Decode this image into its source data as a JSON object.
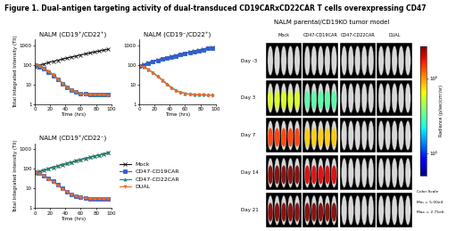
{
  "title": "Figure 1. Dual-antigen targeting activity of dual-transduced CD19CARxCD22CAR T cells overexpressing CD47",
  "chart_data": [
    {
      "type": "line",
      "title": "NALM (CD19⁺/CD22⁺)",
      "x_label": "Time (hrs)",
      "y_label": "Total Integrated Intensity (TII)",
      "log": "y",
      "xlim": [
        0,
        100
      ],
      "xticks": [
        0,
        20,
        40,
        60,
        80,
        100
      ],
      "ylim": [
        1,
        2000
      ],
      "yticks": [
        1,
        10,
        100,
        1000
      ],
      "x": [
        0,
        6,
        12,
        18,
        24,
        30,
        36,
        42,
        48,
        54,
        60,
        66,
        72,
        78,
        84,
        90,
        96
      ],
      "series": [
        {
          "name": "Mock",
          "color": "#111111",
          "marker": "x",
          "line_style": "solid",
          "values": [
            80,
            95,
            110,
            130,
            150,
            170,
            195,
            220,
            250,
            280,
            320,
            360,
            400,
            450,
            500,
            560,
            620
          ]
        },
        {
          "name": "CD47-CD19CAR",
          "color": "#2f5fd0",
          "marker": "square",
          "line_style": "solid",
          "values": [
            100,
            80,
            60,
            42,
            28,
            18,
            11,
            7,
            5,
            4,
            3.5,
            3.2,
            3,
            3,
            3,
            3,
            3
          ]
        },
        {
          "name": "CD47-CD22CAR",
          "color": "#1f8a7a",
          "marker": "triangle_up",
          "line_style": "solid",
          "values": [
            110,
            90,
            68,
            48,
            32,
            20,
            12,
            8,
            5.5,
            4,
            3.5,
            3.2,
            3,
            2.9,
            2.9,
            2.9,
            2.9
          ]
        },
        {
          "name": "DUAL",
          "color": "#f06a2a",
          "marker": "triangle_down",
          "line_style": "solid",
          "values": [
            105,
            85,
            62,
            44,
            29,
            18,
            11,
            7,
            5,
            4,
            3.4,
            3.1,
            3,
            3,
            2.9,
            2.9,
            2.8
          ]
        }
      ]
    },
    {
      "type": "line",
      "title": "NALM (CD19⁻/CD22⁺)",
      "x_label": "Time (hrs)",
      "log": "y",
      "xlim": [
        0,
        100
      ],
      "xticks": [
        0,
        20,
        40,
        60,
        80,
        100
      ],
      "ylim": [
        1,
        2000
      ],
      "yticks": [
        1,
        10,
        100,
        1000
      ],
      "x": [
        0,
        6,
        12,
        18,
        24,
        30,
        36,
        42,
        48,
        54,
        60,
        66,
        72,
        78,
        84,
        90,
        96
      ],
      "series": [
        {
          "name": "Mock",
          "color": "#111111",
          "marker": "x",
          "line_style": "solid",
          "values": [
            90,
            105,
            125,
            150,
            175,
            200,
            230,
            265,
            300,
            340,
            390,
            440,
            500,
            560,
            630,
            700,
            780
          ]
        },
        {
          "name": "CD47-CD19CAR",
          "color": "#2f5fd0",
          "marker": "square",
          "line_style": "solid",
          "values": [
            85,
            100,
            118,
            140,
            165,
            190,
            220,
            250,
            285,
            325,
            370,
            420,
            475,
            535,
            600,
            670,
            740
          ]
        },
        {
          "name": "CD47-CD22CAR",
          "color": "#1f8a7a",
          "marker": "triangle_up",
          "line_style": "solid",
          "values": [
            95,
            78,
            58,
            40,
            27,
            17,
            11,
            7,
            5,
            4,
            3.5,
            3.2,
            3,
            3,
            2.9,
            2.9,
            2.9
          ]
        },
        {
          "name": "DUAL",
          "color": "#f06a2a",
          "marker": "triangle_down",
          "line_style": "solid",
          "values": [
            90,
            74,
            55,
            38,
            25,
            16,
            10,
            6.5,
            4.8,
            3.8,
            3.4,
            3.1,
            3,
            2.9,
            2.9,
            2.8,
            2.8
          ]
        }
      ]
    },
    {
      "type": "line",
      "title": "NALM (CD19⁺/CD22⁻)",
      "x_label": "Time (hrs)",
      "y_label": "Total Integrated Intensity (TII)",
      "log": "y",
      "xlim": [
        0,
        100
      ],
      "xticks": [
        0,
        20,
        40,
        60,
        80,
        100
      ],
      "ylim": [
        1,
        2000
      ],
      "yticks": [
        1,
        10,
        100,
        1000
      ],
      "legend": "right",
      "x": [
        0,
        6,
        12,
        18,
        24,
        30,
        36,
        42,
        48,
        54,
        60,
        66,
        72,
        78,
        84,
        90,
        96
      ],
      "series": [
        {
          "name": "Mock",
          "color": "#111111",
          "marker": "x",
          "line_style": "solid",
          "values": [
            60,
            72,
            85,
            100,
            118,
            138,
            160,
            185,
            215,
            250,
            290,
            335,
            385,
            440,
            500,
            570,
            650
          ]
        },
        {
          "name": "CD47-CD19CAR",
          "color": "#2f5fd0",
          "marker": "square",
          "line_style": "solid",
          "values": [
            70,
            58,
            45,
            33,
            23,
            15,
            10,
            7,
            5,
            4,
            3.5,
            3.2,
            3,
            3,
            3,
            3,
            3
          ]
        },
        {
          "name": "CD47-CD22CAR",
          "color": "#1f8a7a",
          "marker": "triangle_up",
          "line_style": "solid",
          "values": [
            62,
            74,
            88,
            104,
            122,
            142,
            165,
            190,
            220,
            255,
            295,
            340,
            390,
            445,
            505,
            575,
            655
          ]
        },
        {
          "name": "DUAL",
          "color": "#f06a2a",
          "marker": "triangle_down",
          "line_style": "solid",
          "values": [
            68,
            55,
            42,
            30,
            21,
            14,
            9,
            6.5,
            4.8,
            3.9,
            3.4,
            3.1,
            3,
            2.9,
            2.9,
            2.9,
            2.9
          ]
        }
      ]
    }
  ],
  "image_panel": {
    "title": "NALM parental/CD19KO tumor model",
    "columns": [
      "Mock",
      "CD47-CD19CAR",
      "CD47-CD22CAR",
      "DUAL"
    ],
    "rows": [
      "Day -3",
      "Day 3",
      "Day 7",
      "Day 14",
      "Day 21"
    ],
    "signal": [
      [
        null,
        null,
        null,
        null
      ],
      [
        600000,
        300000,
        null,
        null
      ],
      [
        1500000,
        800000,
        null,
        null
      ],
      [
        2750000,
        2000000,
        null,
        null
      ],
      [
        2750000,
        2750000,
        null,
        null
      ]
    ],
    "colorbar": {
      "range": [
        50000,
        2750000
      ],
      "ticks": [
        {
          "value": 100000,
          "label": "10⁵"
        },
        {
          "value": 1000000,
          "label": "10⁶"
        }
      ],
      "label": "Radiance (p/sec/cm²/sr)"
    },
    "color_scale_text": [
      "Color Scale",
      "Min = 5.00e4",
      "Max = 2.75e6"
    ]
  }
}
